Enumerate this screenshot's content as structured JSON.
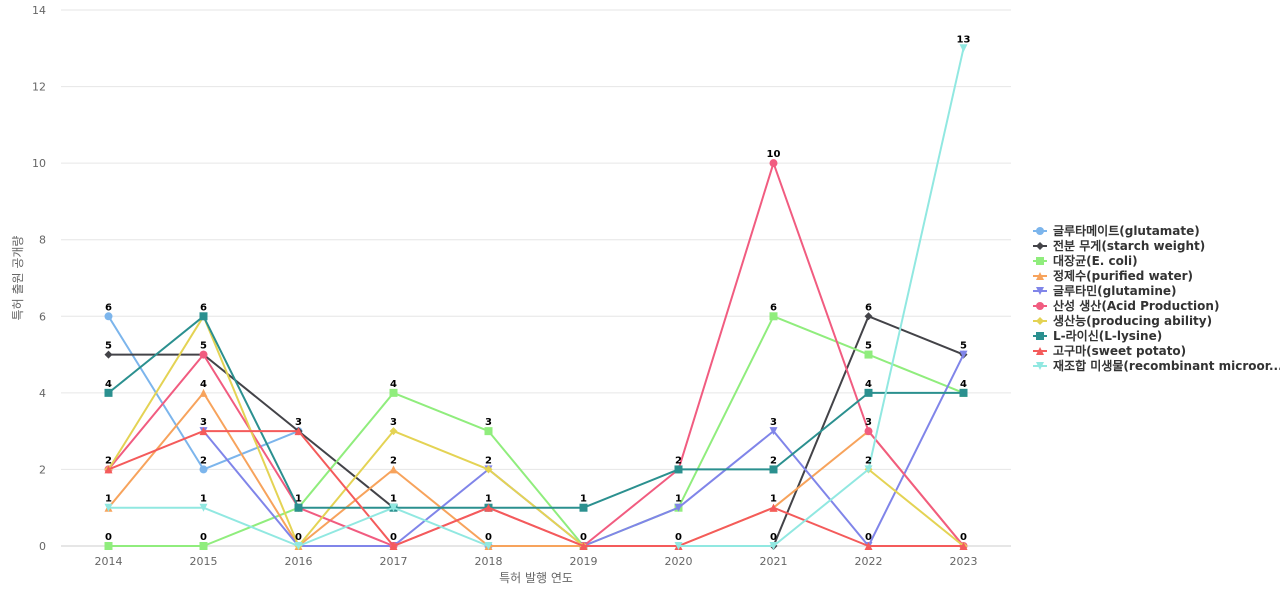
{
  "chart_data": {
    "type": "line",
    "xlabel": "특허 발행 연도",
    "ylabel": "특허 출원 공개량",
    "ylim": [
      0,
      14
    ],
    "yticks": [
      0,
      2,
      4,
      6,
      8,
      10,
      12,
      14
    ],
    "categories": [
      "2014",
      "2015",
      "2016",
      "2017",
      "2018",
      "2019",
      "2020",
      "2021",
      "2022",
      "2023"
    ],
    "grid": true,
    "legend_position": "right",
    "series": [
      {
        "name": "글루타메이트(glutamate)",
        "color": "#7cb5ec",
        "marker": "circle",
        "values": [
          6,
          2,
          3,
          null,
          0,
          null,
          null,
          null,
          null,
          null
        ]
      },
      {
        "name": "전분 무게(starch weight)",
        "color": "#434348",
        "marker": "diamond",
        "values": [
          5,
          5,
          3,
          1,
          null,
          null,
          null,
          0,
          6,
          5
        ]
      },
      {
        "name": "대장균(E. coli)",
        "color": "#90ed7d",
        "marker": "square",
        "values": [
          0,
          0,
          1,
          4,
          3,
          0,
          1,
          6,
          5,
          4
        ]
      },
      {
        "name": "정제수(purified water)",
        "color": "#f7a35c",
        "marker": "triangle",
        "values": [
          1,
          4,
          0,
          2,
          0,
          0,
          0,
          1,
          3,
          0
        ]
      },
      {
        "name": "글루타민(glutamine)",
        "color": "#8085e9",
        "marker": "triangle-down",
        "values": [
          null,
          3,
          0,
          0,
          2,
          0,
          1,
          3,
          0,
          5
        ]
      },
      {
        "name": "산성 생산(Acid Production)",
        "color": "#f15c80",
        "marker": "circle",
        "values": [
          2,
          5,
          1,
          0,
          1,
          0,
          2,
          10,
          3,
          0
        ]
      },
      {
        "name": "생산능(producing ability)",
        "color": "#e4d354",
        "marker": "diamond",
        "values": [
          2,
          6,
          0,
          3,
          2,
          0,
          null,
          null,
          2,
          0
        ]
      },
      {
        "name": "L-라이신(L-lysine)",
        "color": "#2b908f",
        "marker": "square",
        "values": [
          4,
          6,
          1,
          1,
          1,
          1,
          2,
          2,
          4,
          4
        ]
      },
      {
        "name": "고구마(sweet potato)",
        "color": "#f45b5b",
        "marker": "triangle",
        "values": [
          2,
          3,
          3,
          0,
          1,
          0,
          0,
          1,
          0,
          0
        ]
      },
      {
        "name": "재조합 미생물(recombinant microor...",
        "color": "#91e8e1",
        "marker": "triangle-down",
        "values": [
          1,
          1,
          0,
          1,
          0,
          null,
          0,
          0,
          2,
          13
        ]
      }
    ],
    "data_labels": [
      {
        "x": "2014",
        "y": 6,
        "label": "6"
      },
      {
        "x": "2014",
        "y": 5,
        "label": "5"
      },
      {
        "x": "2014",
        "y": 4,
        "label": "4"
      },
      {
        "x": "2014",
        "y": 2,
        "label": "2"
      },
      {
        "x": "2014",
        "y": 1,
        "label": "1"
      },
      {
        "x": "2014",
        "y": 0,
        "label": "0"
      },
      {
        "x": "2015",
        "y": 6,
        "label": "6"
      },
      {
        "x": "2015",
        "y": 5,
        "label": "5"
      },
      {
        "x": "2015",
        "y": 4,
        "label": "4"
      },
      {
        "x": "2015",
        "y": 3,
        "label": "3"
      },
      {
        "x": "2015",
        "y": 2,
        "label": "2"
      },
      {
        "x": "2015",
        "y": 1,
        "label": "1"
      },
      {
        "x": "2015",
        "y": 0,
        "label": "0"
      },
      {
        "x": "2016",
        "y": 3,
        "label": "3"
      },
      {
        "x": "2016",
        "y": 1,
        "label": "1"
      },
      {
        "x": "2016",
        "y": 0,
        "label": "0"
      },
      {
        "x": "2017",
        "y": 4,
        "label": "4"
      },
      {
        "x": "2017",
        "y": 3,
        "label": "3"
      },
      {
        "x": "2017",
        "y": 2,
        "label": "2"
      },
      {
        "x": "2017",
        "y": 1,
        "label": "1"
      },
      {
        "x": "2017",
        "y": 0,
        "label": "0"
      },
      {
        "x": "2018",
        "y": 3,
        "label": "3"
      },
      {
        "x": "2018",
        "y": 2,
        "label": "2"
      },
      {
        "x": "2018",
        "y": 1,
        "label": "1"
      },
      {
        "x": "2018",
        "y": 0,
        "label": "0"
      },
      {
        "x": "2019",
        "y": 1,
        "label": "1"
      },
      {
        "x": "2019",
        "y": 0,
        "label": "0"
      },
      {
        "x": "2020",
        "y": 2,
        "label": "2"
      },
      {
        "x": "2020",
        "y": 1,
        "label": "1"
      },
      {
        "x": "2020",
        "y": 0,
        "label": "0"
      },
      {
        "x": "2021",
        "y": 10,
        "label": "10"
      },
      {
        "x": "2021",
        "y": 6,
        "label": "6"
      },
      {
        "x": "2021",
        "y": 3,
        "label": "3"
      },
      {
        "x": "2021",
        "y": 2,
        "label": "2"
      },
      {
        "x": "2021",
        "y": 1,
        "label": "1"
      },
      {
        "x": "2021",
        "y": 0,
        "label": "0"
      },
      {
        "x": "2022",
        "y": 6,
        "label": "6"
      },
      {
        "x": "2022",
        "y": 5,
        "label": "5"
      },
      {
        "x": "2022",
        "y": 4,
        "label": "4"
      },
      {
        "x": "2022",
        "y": 3,
        "label": "3"
      },
      {
        "x": "2022",
        "y": 2,
        "label": "2"
      },
      {
        "x": "2022",
        "y": 0,
        "label": "0"
      },
      {
        "x": "2023",
        "y": 13,
        "label": "13"
      },
      {
        "x": "2023",
        "y": 5,
        "label": "5"
      },
      {
        "x": "2023",
        "y": 4,
        "label": "4"
      },
      {
        "x": "2023",
        "y": 0,
        "label": "0"
      }
    ]
  }
}
